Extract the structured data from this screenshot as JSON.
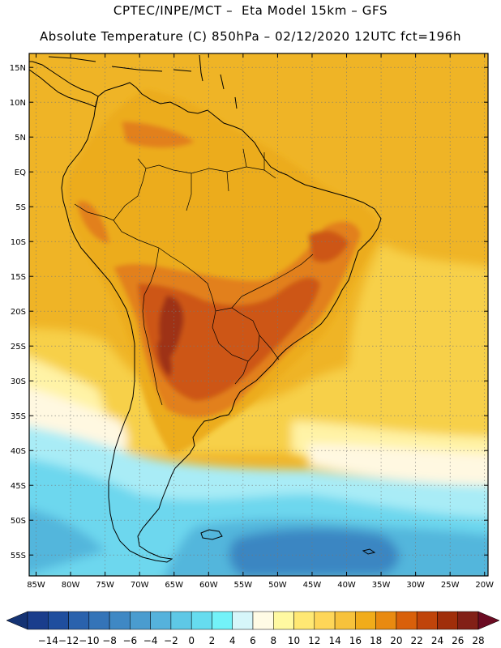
{
  "header": {
    "line1": "CPTEC/INPE/MCT –  Eta Model 15km – GFS",
    "line2": "Absolute Temperature (C) 850hPa – 02/12/2020 12UTC fct=196h"
  },
  "axes": {
    "lon_labels": [
      "85W",
      "80W",
      "75W",
      "70W",
      "65W",
      "60W",
      "55W",
      "50W",
      "45W",
      "40W",
      "35W",
      "30W",
      "25W",
      "20W"
    ],
    "lat_labels": [
      "15N",
      "10N",
      "5N",
      "EQ",
      "5S",
      "10S",
      "15S",
      "20S",
      "25S",
      "30S",
      "35S",
      "40S",
      "45S",
      "50S",
      "55S"
    ],
    "lon_range": [
      -86,
      -19.5
    ],
    "lat_range": [
      -58,
      17
    ]
  },
  "colorbar": {
    "labels": [
      "-14",
      "-12",
      "-10",
      "-8",
      "-6",
      "-4",
      "-2",
      "0",
      "2",
      "4",
      "6",
      "8",
      "10",
      "12",
      "14",
      "16",
      "18",
      "20",
      "22",
      "24",
      "26",
      "28"
    ],
    "colors": [
      "#1a3d8c",
      "#1f4e9e",
      "#2a62ad",
      "#3474b8",
      "#3f88c4",
      "#4a9ccf",
      "#55b2dc",
      "#5ec8e6",
      "#66dcef",
      "#73f2f8",
      "#d6f6fa",
      "#fffbe5",
      "#fff9a1",
      "#ffe873",
      "#fed658",
      "#f7c23b",
      "#f1ac1a",
      "#e98a10",
      "#d9600a",
      "#c0440a",
      "#a02e0a",
      "#822016"
    ],
    "low_end_color": "#153374",
    "high_end_color": "#6b0b22"
  },
  "map_colors": {
    "ocean_tropical": "#efb426",
    "land_tropical": "#ecac1e",
    "hot_orange": "#e2801a",
    "hot_red": "#cd5716",
    "hot_dark": "#9e3317",
    "subtropical_yellow": "#f7d04a",
    "pale_yellow": "#fff3a6",
    "cream": "#fff8e1",
    "light_cyan": "#a9ecf6",
    "cyan": "#6dd7ee",
    "mid_blue": "#53b6dc",
    "deep_blue": "#3a86c2",
    "grid": "#777777",
    "coast": "#000000"
  }
}
